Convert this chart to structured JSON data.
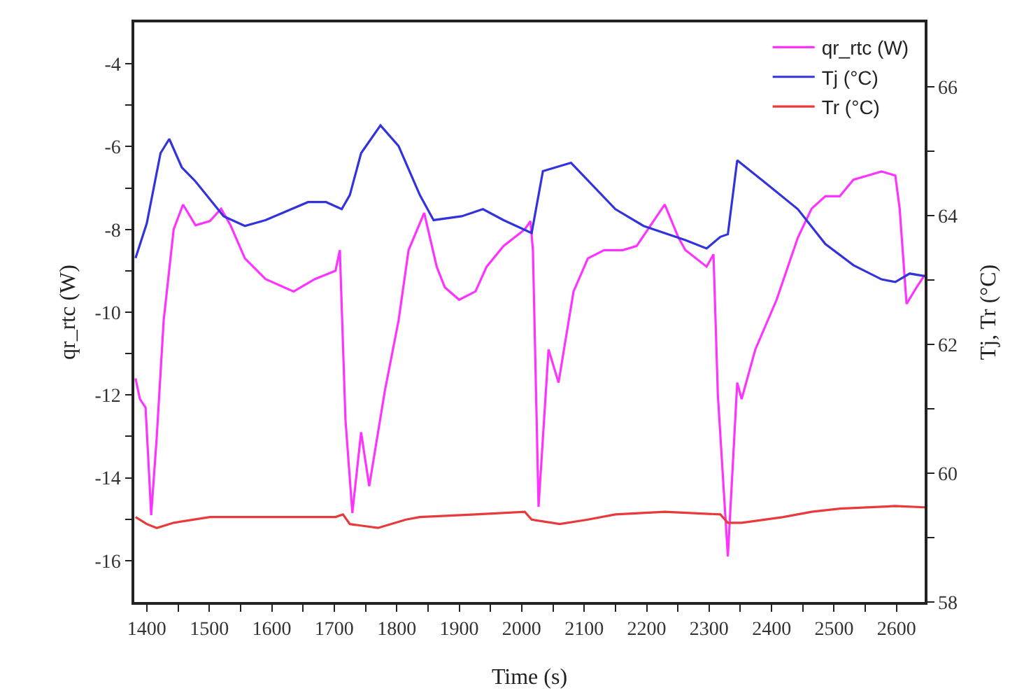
{
  "chart_data": {
    "type": "line",
    "xlabel": "Time (s)",
    "ylabel": "qr_rtc (W)",
    "y2label": "Tj, Tr (°C)",
    "xlim": [
      1380,
      2645
    ],
    "ylim": [
      -17,
      -3
    ],
    "y2lim": [
      58,
      67
    ],
    "xticks": [
      1400,
      {
        "value": 1450,
        "label": null
      },
      1500,
      {
        "value": 1550,
        "label": null
      },
      1600,
      {
        "value": 1650,
        "label": null
      },
      1700,
      {
        "value": 1750,
        "label": null
      },
      1800,
      {
        "value": 1850,
        "label": null
      },
      1900,
      {
        "value": 1950,
        "label": null
      },
      2000,
      {
        "value": 2050,
        "label": null
      },
      2100,
      {
        "value": 2150,
        "label": null
      },
      2200,
      {
        "value": 2250,
        "label": null
      },
      2300,
      {
        "value": 2350,
        "label": null
      },
      2400,
      {
        "value": 2450,
        "label": null
      },
      2500,
      {
        "value": 2550,
        "label": null
      },
      2600
    ],
    "yticks": [
      -16,
      {
        "value": -15,
        "label": null
      },
      -14,
      {
        "value": -13,
        "label": null
      },
      -12,
      {
        "value": -11,
        "label": null
      },
      -10,
      {
        "value": -9,
        "label": null
      },
      -8,
      {
        "value": -7,
        "label": null
      },
      -6,
      {
        "value": -5,
        "label": null
      },
      -4
    ],
    "y2ticks": [
      58,
      {
        "value": 59,
        "label": null
      },
      60,
      {
        "value": 61,
        "label": null
      },
      62,
      {
        "value": 63,
        "label": null
      },
      64,
      {
        "value": 65,
        "label": null
      },
      66
    ],
    "grid": false,
    "legend": "top right",
    "marker": "none",
    "line_style": "solid",
    "series": [
      {
        "name": "qr_rtc (W)",
        "color": "#ff33ff",
        "x": [
          1382,
          1389,
          1398,
          1404,
          1407,
          1416,
          1427,
          1443,
          1458,
          1478,
          1501,
          1519,
          1534,
          1557,
          1590,
          1635,
          1669,
          1702,
          1709,
          1718,
          1729,
          1743,
          1756,
          1781,
          1803,
          1819,
          1844,
          1864,
          1877,
          1900,
          1926,
          1944,
          1971,
          2005,
          2014,
          2018,
          2027,
          2043,
          2059,
          2083,
          2106,
          2132,
          2162,
          2184,
          2229,
          2251,
          2262,
          2296,
          2307,
          2314,
          2330,
          2345,
          2352,
          2374,
          2408,
          2442,
          2464,
          2486,
          2509,
          2531,
          2554,
          2576,
          2598,
          2605,
          2616,
          2632,
          2645
        ],
        "values": [
          -11.6,
          -12.1,
          -12.3,
          -14.0,
          -14.9,
          -13.0,
          -10.2,
          -8.0,
          -7.4,
          -7.9,
          -7.8,
          -7.5,
          -7.9,
          -8.7,
          -9.2,
          -9.5,
          -9.2,
          -9.0,
          -8.5,
          -12.6,
          -14.85,
          -12.9,
          -14.2,
          -11.9,
          -10.2,
          -8.5,
          -7.6,
          -8.9,
          -9.4,
          -9.7,
          -9.5,
          -8.9,
          -8.4,
          -8.0,
          -7.8,
          -8.5,
          -14.7,
          -10.9,
          -11.7,
          -9.5,
          -8.7,
          -8.5,
          -8.5,
          -8.4,
          -7.4,
          -8.2,
          -8.5,
          -8.9,
          -8.6,
          -12.0,
          -15.9,
          -11.7,
          -12.1,
          -10.9,
          -9.7,
          -8.2,
          -7.5,
          -7.2,
          -7.2,
          -6.8,
          -6.7,
          -6.6,
          -6.7,
          -7.5,
          -9.8,
          -9.4,
          -9.1
        ]
      },
      {
        "name": "Tj (°C)",
        "color": "#3333dd",
        "axis": "y2",
        "x": [
          1382,
          1400,
          1422,
          1436,
          1456,
          1478,
          1523,
          1557,
          1590,
          1658,
          1687,
          1712,
          1725,
          1743,
          1774,
          1803,
          1837,
          1859,
          1904,
          1938,
          1971,
          2016,
          2034,
          2079,
          2150,
          2195,
          2262,
          2296,
          2318,
          2330,
          2345,
          2386,
          2442,
          2486,
          2531,
          2576,
          2598,
          2621,
          2645
        ],
        "values": [
          63.34,
          63.88,
          64.97,
          65.19,
          64.75,
          64.53,
          63.99,
          63.84,
          63.93,
          64.21,
          64.21,
          64.1,
          64.32,
          64.97,
          65.4,
          65.08,
          64.32,
          63.93,
          63.99,
          64.1,
          63.93,
          63.73,
          64.69,
          64.82,
          64.1,
          63.84,
          63.62,
          63.49,
          63.67,
          63.71,
          64.86,
          64.54,
          64.1,
          63.56,
          63.23,
          63.01,
          62.97,
          63.1,
          63.06
        ]
      },
      {
        "name": "Tr (°C)",
        "color": "#e83a3a",
        "axis": "y2",
        "x": [
          1382,
          1400,
          1416,
          1443,
          1501,
          1613,
          1702,
          1714,
          1725,
          1770,
          1815,
          1837,
          1926,
          2005,
          2016,
          2061,
          2106,
          2150,
          2229,
          2318,
          2330,
          2352,
          2419,
          2464,
          2509,
          2598,
          2645
        ],
        "values": [
          59.32,
          59.21,
          59.15,
          59.23,
          59.32,
          59.32,
          59.32,
          59.36,
          59.21,
          59.15,
          59.28,
          59.32,
          59.36,
          59.4,
          59.28,
          59.21,
          59.28,
          59.36,
          59.4,
          59.36,
          59.23,
          59.23,
          59.32,
          59.4,
          59.45,
          59.49,
          59.47
        ]
      }
    ]
  }
}
